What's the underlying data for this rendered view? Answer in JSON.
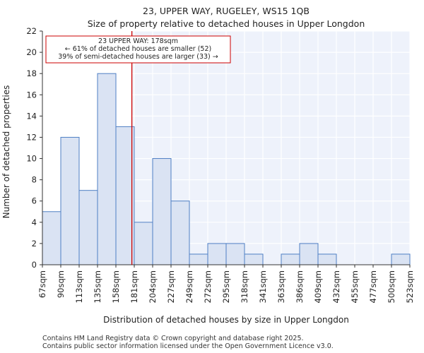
{
  "chart_data": {
    "type": "bar",
    "title": "23, UPPER WAY, RUGELEY, WS15 1QB",
    "subtitle": "Size of property relative to detached houses in Upper Longdon",
    "xlabel": "Distribution of detached houses by size in Upper Longdon",
    "ylabel": "Number of detached properties",
    "bin_edges": [
      "67sqm",
      "90sqm",
      "113sqm",
      "135sqm",
      "158sqm",
      "181sqm",
      "204sqm",
      "227sqm",
      "249sqm",
      "272sqm",
      "295sqm",
      "318sqm",
      "341sqm",
      "363sqm",
      "386sqm",
      "409sqm",
      "432sqm",
      "455sqm",
      "477sqm",
      "500sqm",
      "523sqm"
    ],
    "values": [
      5,
      12,
      7,
      18,
      13,
      4,
      10,
      6,
      1,
      2,
      2,
      1,
      0,
      1,
      2,
      1,
      0,
      0,
      0,
      1
    ],
    "ylim": [
      0,
      22
    ],
    "yticks": [
      0,
      2,
      4,
      6,
      8,
      10,
      12,
      14,
      16,
      18,
      20,
      22
    ],
    "grid": true,
    "marker": {
      "value_sqm": 178,
      "color": "#cc0000",
      "annotation": [
        "23 UPPER WAY: 178sqm",
        "← 61% of detached houses are smaller (52)",
        "39% of semi-detached houses are larger (33) →"
      ]
    },
    "bar_fill": "#dae3f3",
    "bar_stroke": "#4f7fc4",
    "highlight_bg": "#eef2fb"
  },
  "footer": {
    "line1": "Contains HM Land Registry data © Crown copyright and database right 2025.",
    "line2": "Contains public sector information licensed under the Open Government Licence v3.0."
  }
}
